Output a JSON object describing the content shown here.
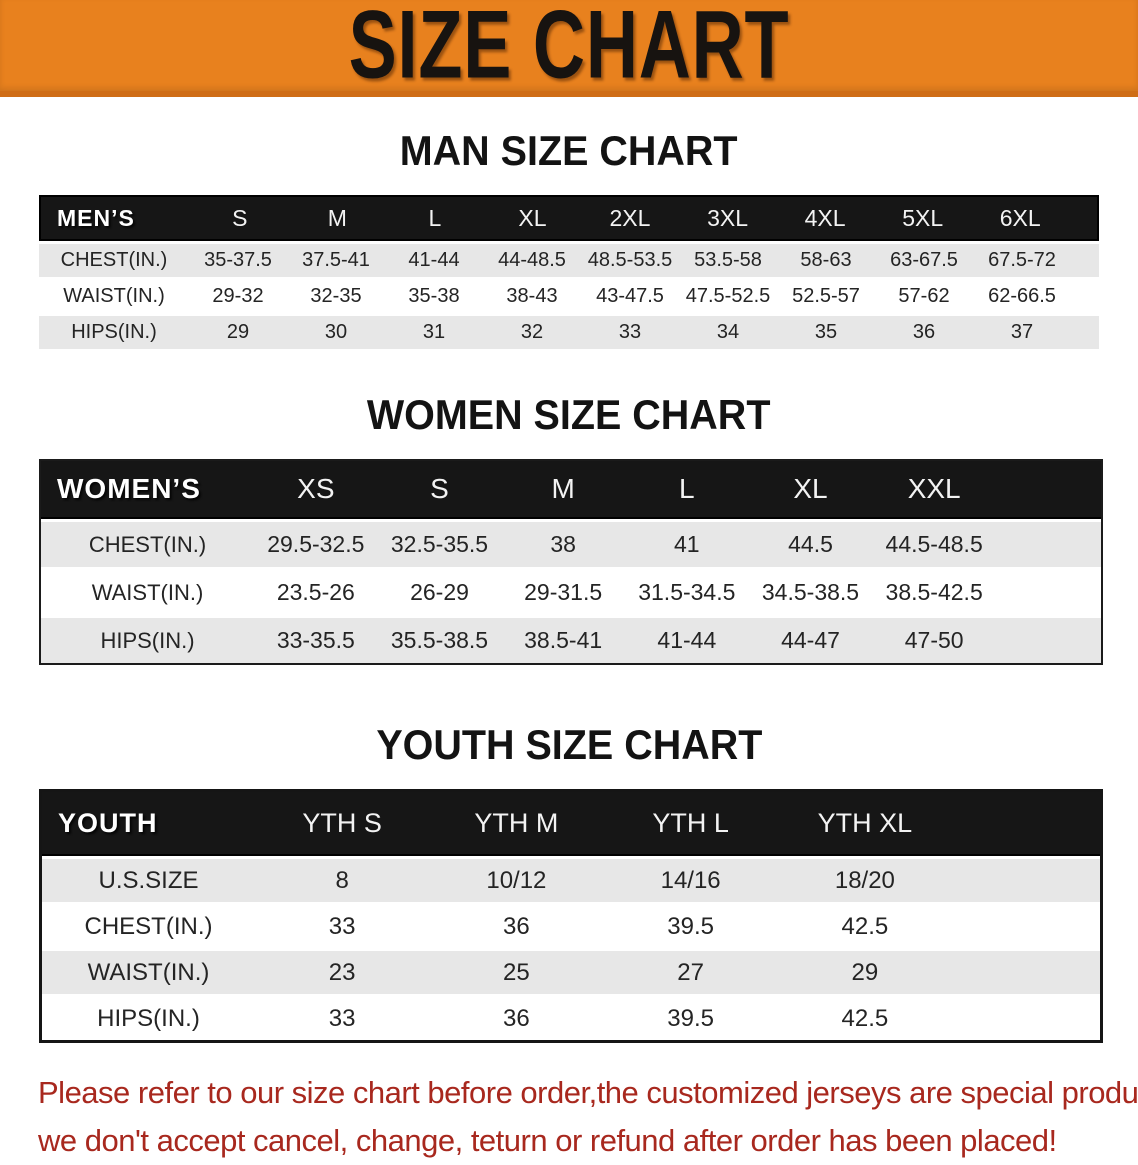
{
  "banner": {
    "title": "SIZE CHART",
    "bg_color": "#E8811E",
    "text_color": "#171310"
  },
  "sections": [
    {
      "heading": "MAN SIZE CHART",
      "table": {
        "header_label": "MEN’S",
        "columns": [
          "S",
          "M",
          "L",
          "XL",
          "2XL",
          "3XL",
          "4XL",
          "5XL",
          "6XL"
        ],
        "rows": [
          {
            "label": "CHEST(IN.)",
            "values": [
              "35-37.5",
              "37.5-41",
              "41-44",
              "44-48.5",
              "48.5-53.5",
              "53.5-58",
              "58-63",
              "63-67.5",
              "67.5-72"
            ]
          },
          {
            "label": "WAIST(IN.)",
            "values": [
              "29-32",
              "32-35",
              "35-38",
              "38-43",
              "43-47.5",
              "47.5-52.5",
              "52.5-57",
              "57-62",
              "62-66.5"
            ]
          },
          {
            "label": "HIPS(IN.)",
            "values": [
              "29",
              "30",
              "31",
              "32",
              "33",
              "34",
              "35",
              "36",
              "37"
            ]
          }
        ]
      }
    },
    {
      "heading": "WOMEN SIZE CHART",
      "table": {
        "header_label": "WOMEN’S",
        "columns": [
          "XS",
          "S",
          "M",
          "L",
          "XL",
          "XXL"
        ],
        "rows": [
          {
            "label": "CHEST(IN.)",
            "values": [
              "29.5-32.5",
              "32.5-35.5",
              "38",
              "41",
              "44.5",
              "44.5-48.5"
            ]
          },
          {
            "label": "WAIST(IN.)",
            "values": [
              "23.5-26",
              "26-29",
              "29-31.5",
              "31.5-34.5",
              "34.5-38.5",
              "38.5-42.5"
            ]
          },
          {
            "label": "HIPS(IN.)",
            "values": [
              "33-35.5",
              "35.5-38.5",
              "38.5-41",
              "41-44",
              "44-47",
              "47-50"
            ]
          }
        ]
      }
    },
    {
      "heading": "YOUTH SIZE CHART",
      "table": {
        "header_label": "YOUTH",
        "columns": [
          "YTH S",
          "YTH M",
          "YTH L",
          "YTH XL"
        ],
        "rows": [
          {
            "label": "U.S.SIZE",
            "values": [
              "8",
              "10/12",
              "14/16",
              "18/20"
            ]
          },
          {
            "label": "CHEST(IN.)",
            "values": [
              "33",
              "36",
              "39.5",
              "42.5"
            ]
          },
          {
            "label": "WAIST(IN.)",
            "values": [
              "23",
              "25",
              "27",
              "29"
            ]
          },
          {
            "label": "HIPS(IN.)",
            "values": [
              "33",
              "36",
              "39.5",
              "42.5"
            ]
          }
        ]
      }
    }
  ],
  "disclaimer": {
    "line1": "Please refer to our size chart before order,the customized jerseys are special products,",
    "line2": "we don't accept cancel, change, teturn or refund after order has been placed!",
    "color": "#A8281E"
  },
  "colors": {
    "banner_orange": "#E8811E",
    "table_header_black": "#161616",
    "stripe_gray": "#E7E7E7",
    "disclaimer_red": "#A8281E"
  }
}
